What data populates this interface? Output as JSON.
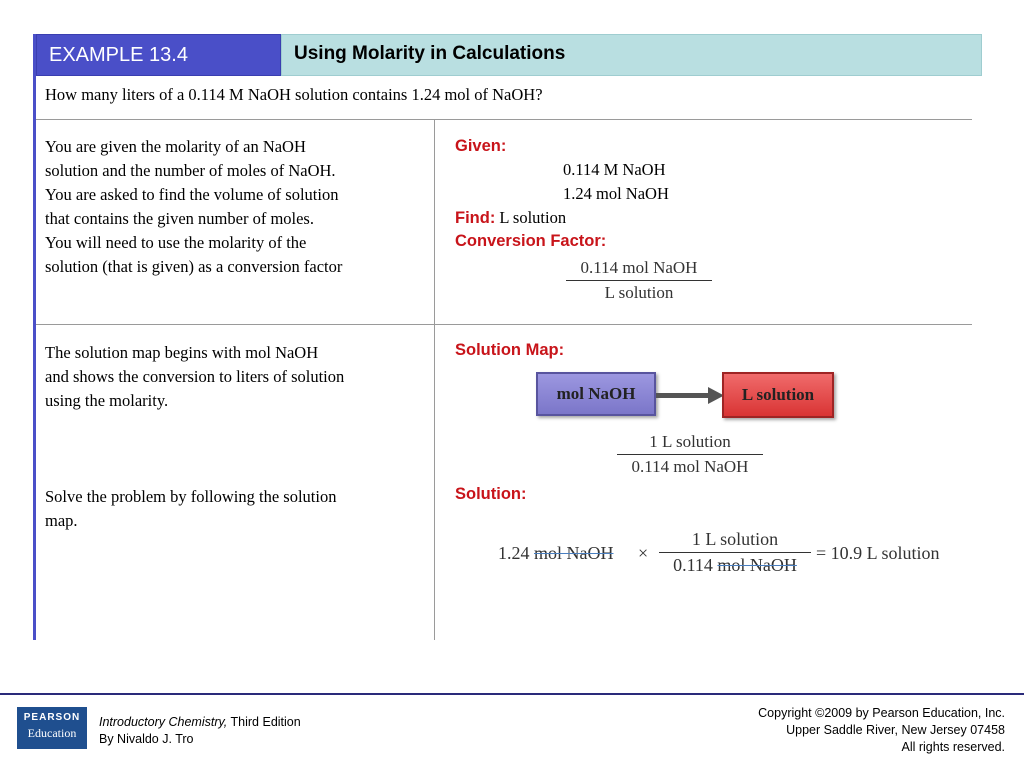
{
  "header": {
    "example": "EXAMPLE 13.4",
    "title": "Using Molarity in Calculations"
  },
  "question": "How many liters of a 0.114 M NaOH solution contains 1.24 mol of NaOH?",
  "section1": {
    "left_lines": [
      "You are given the molarity of an NaOH",
      "solution and the number of moles of NaOH.",
      "You are asked to find the volume of solution",
      "that contains the given number of moles.",
      "You will need to use the molarity of the",
      "solution (that is given) as a conversion factor"
    ],
    "given_label": "Given:",
    "given_values": [
      "0.114 M NaOH",
      "1.24 mol NaOH"
    ],
    "find_label": "Find:",
    "find_value": "L solution",
    "conversion_label": "Conversion Factor:",
    "conversion_numerator": "0.114 mol NaOH",
    "conversion_denominator": "L solution"
  },
  "section2": {
    "left_lines": [
      "The solution map begins with mol NaOH",
      "and shows the conversion to liters of solution",
      "using the molarity."
    ],
    "map_label": "Solution Map:",
    "map_from": "mol NaOH",
    "map_to": "L solution",
    "map_numerator": "1 L solution",
    "map_denominator": "0.114 mol NaOH",
    "colors": {
      "from_box": "#8a86d6",
      "to_box": "#e04545",
      "arrow": "#555555"
    }
  },
  "section3": {
    "left_lines": [
      "Solve the problem by following the solution",
      "map."
    ],
    "solution_label": "Solution:",
    "eq_coef": "1.24",
    "eq_unit": "mol NaOH",
    "eq_times": "×",
    "eq_numerator": "1 L solution",
    "eq_den_coef": "0.114",
    "eq_den_unit": "mol NaOH",
    "eq_result": "= 10.9 L solution"
  },
  "footer": {
    "logo_top": "PEARSON",
    "logo_bottom": "Education",
    "book_title": "Introductory Chemistry,",
    "edition": " Third Edition",
    "author": "By Nivaldo J. Tro",
    "copyright_lines": [
      "Copyright ©2009 by Pearson Education, Inc.",
      "Upper Saddle River, New Jersey 07458",
      "All rights reserved."
    ]
  }
}
